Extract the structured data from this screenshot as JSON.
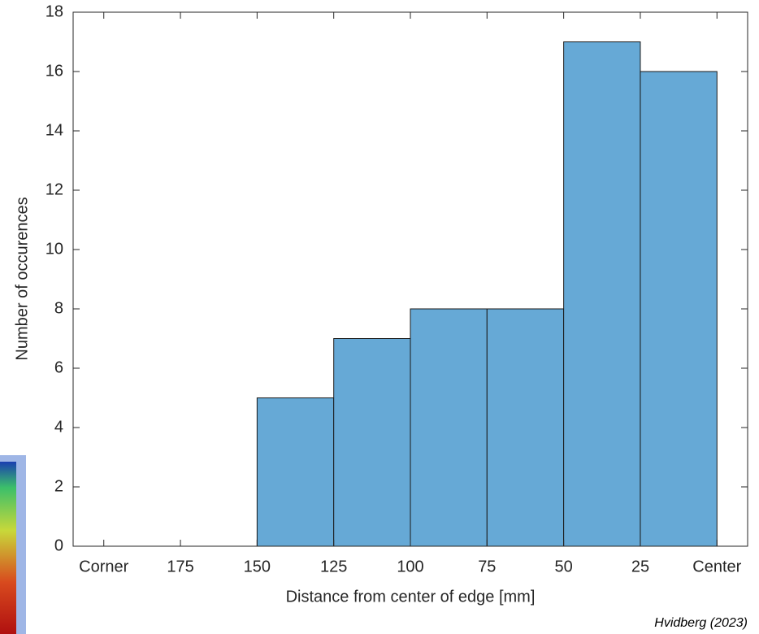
{
  "chart_data": {
    "type": "histogram",
    "xlabel": "Distance from center of edge [mm]",
    "ylabel": "Number of occurences",
    "annotation": "Hvidberg (2023)",
    "bins": [
      150,
      125,
      100,
      75,
      50,
      25,
      0
    ],
    "values": [
      5,
      7,
      8,
      8,
      17,
      16
    ],
    "color": "#66a9d6",
    "edge_color": "#1a1a1a",
    "xlim": [
      210,
      -10
    ],
    "xticks": [
      {
        "value": 200,
        "label": "Corner"
      },
      175,
      150,
      125,
      100,
      75,
      50,
      25,
      {
        "value": 0,
        "label": "Center"
      }
    ],
    "ylim": [
      0,
      18
    ],
    "yticks": [
      0,
      2,
      4,
      6,
      8,
      10,
      12,
      14,
      16,
      18
    ],
    "grid": false
  }
}
